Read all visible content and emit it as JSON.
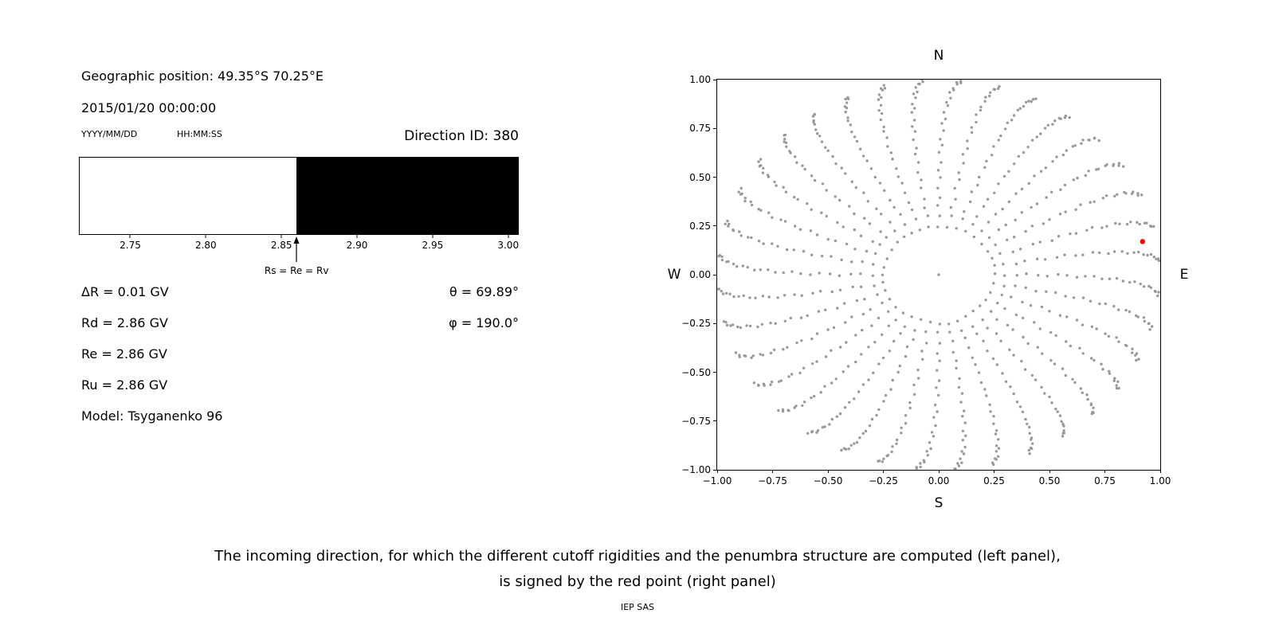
{
  "left_panel": {
    "geo_position": "Geographic position: 49.35°S 70.25°E",
    "datetime": "2015/01/20 00:00:00",
    "date_format": "YYYY/MM/DD",
    "time_format": "HH:MM:SS",
    "direction_id": "Direction ID: 380",
    "delta_r_line": "ΔR = 0.01 GV",
    "rd_line": "Rd = 2.86 GV",
    "re_line": "Re = 2.86 GV",
    "ru_line": "Ru = 2.86 GV",
    "model_line": "Model: Tsyganenko 96",
    "theta_line": "θ = 69.89°",
    "phi_line": "φ = 190.0°"
  },
  "caption": {
    "line1": "The incoming direction, for which the different cutoff rigidities and the penumbra structure are computed (left panel),",
    "line2": "is signed by the red point (right panel)",
    "credit": "IEP SAS"
  },
  "chart_data": [
    {
      "id": "penumbra",
      "type": "bar",
      "xlim": [
        2.716,
        3.007
      ],
      "xticks": [
        2.75,
        2.8,
        2.85,
        2.9,
        2.95,
        3.0
      ],
      "xtick_labels": [
        "2.75",
        "2.80",
        "2.85",
        "2.90",
        "2.95",
        "3.00"
      ],
      "segments": [
        {
          "from": 2.716,
          "to": 2.86,
          "color": "#ffffff"
        },
        {
          "from": 2.86,
          "to": 3.007,
          "color": "#000000"
        }
      ],
      "marker": {
        "x": 2.86,
        "label": "Rs = Re = Rv"
      }
    },
    {
      "id": "incoming-directions",
      "type": "scatter",
      "xlim": [
        -1,
        1
      ],
      "ylim": [
        -1,
        1
      ],
      "xticks": [
        -1,
        -0.75,
        -0.5,
        -0.25,
        0,
        0.25,
        0.5,
        0.75,
        1
      ],
      "xtick_labels": [
        "−1.00",
        "−0.75",
        "−0.50",
        "−0.25",
        "0.00",
        "0.25",
        "0.50",
        "0.75",
        "1.00"
      ],
      "yticks": [
        1,
        0.75,
        0.5,
        0.25,
        0,
        -0.25,
        -0.5,
        -0.75,
        -1
      ],
      "ytick_labels": [
        "1.00",
        "0.75",
        "0.50",
        "0.25",
        "0.00",
        "−0.25",
        "−0.50",
        "−0.75",
        "−1.00"
      ],
      "compass": {
        "top": "N",
        "bottom": "S",
        "left": "W",
        "right": "E"
      },
      "dot_color": "#999999",
      "dot_radius_px": 1.7,
      "red_point": {
        "x": 0.92,
        "y": 0.17,
        "color": "#ff0000",
        "radius_px": 3.2
      },
      "pattern": {
        "type": "radial-spokes",
        "azimuth_start_deg": 0,
        "azimuth_step_deg": 10,
        "azimuth_count": 36,
        "zenith_min_deg": 14.5,
        "zenith_max_deg": 86.5,
        "zenith_step_deg": 3,
        "radius_scale": 1.0,
        "twist_deg": 6,
        "jitter": 0.006,
        "center_dot": true
      }
    }
  ]
}
